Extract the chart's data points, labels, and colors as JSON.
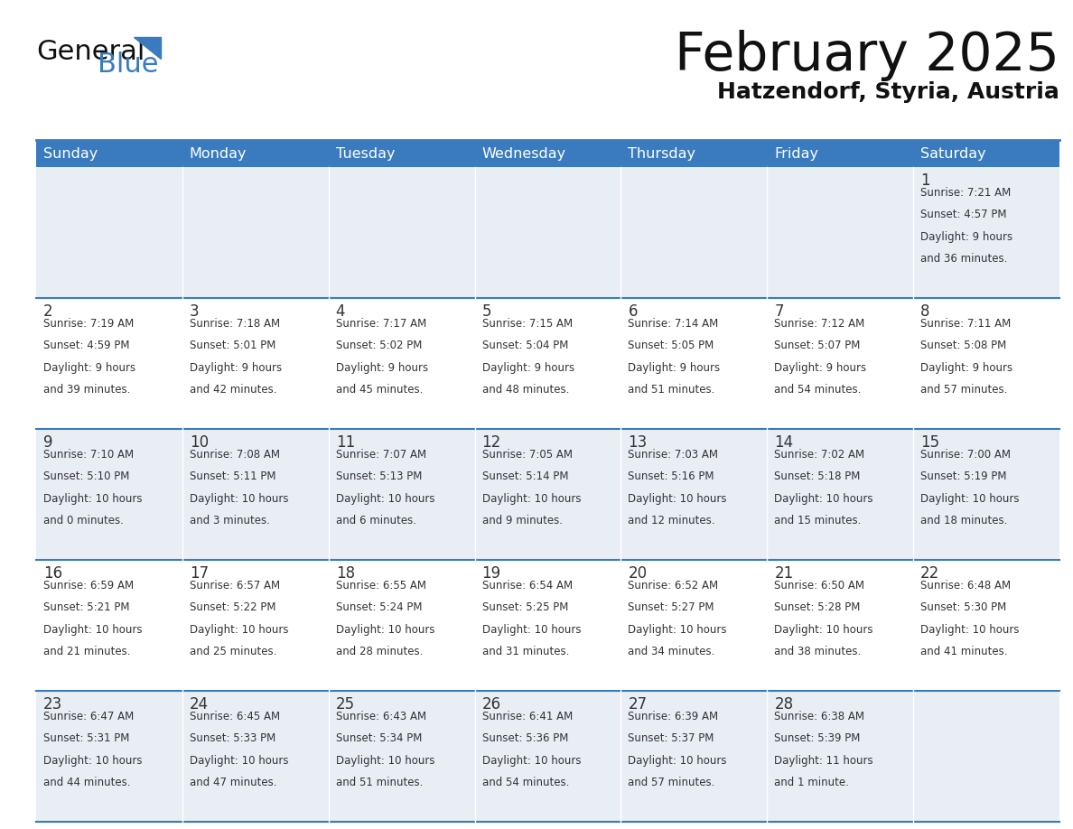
{
  "title": "February 2025",
  "subtitle": "Hatzendorf, Styria, Austria",
  "header_color": "#3a7bbf",
  "header_text_color": "#ffffff",
  "cell_bg_row0": "#e8eef4",
  "cell_bg_row1": "#ffffff",
  "cell_bg_row2": "#e8eef4",
  "cell_bg_row3": "#ffffff",
  "cell_bg_row4": "#e8eef4",
  "border_color": "#3a7bbf",
  "text_color": "#333333",
  "days_of_week": [
    "Sunday",
    "Monday",
    "Tuesday",
    "Wednesday",
    "Thursday",
    "Friday",
    "Saturday"
  ],
  "weeks": [
    [
      null,
      null,
      null,
      null,
      null,
      null,
      1
    ],
    [
      2,
      3,
      4,
      5,
      6,
      7,
      8
    ],
    [
      9,
      10,
      11,
      12,
      13,
      14,
      15
    ],
    [
      16,
      17,
      18,
      19,
      20,
      21,
      22
    ],
    [
      23,
      24,
      25,
      26,
      27,
      28,
      null
    ]
  ],
  "cell_data": {
    "1": {
      "sunrise": "7:21 AM",
      "sunset": "4:57 PM",
      "dl1": "Daylight: 9 hours",
      "dl2": "and 36 minutes."
    },
    "2": {
      "sunrise": "7:19 AM",
      "sunset": "4:59 PM",
      "dl1": "Daylight: 9 hours",
      "dl2": "and 39 minutes."
    },
    "3": {
      "sunrise": "7:18 AM",
      "sunset": "5:01 PM",
      "dl1": "Daylight: 9 hours",
      "dl2": "and 42 minutes."
    },
    "4": {
      "sunrise": "7:17 AM",
      "sunset": "5:02 PM",
      "dl1": "Daylight: 9 hours",
      "dl2": "and 45 minutes."
    },
    "5": {
      "sunrise": "7:15 AM",
      "sunset": "5:04 PM",
      "dl1": "Daylight: 9 hours",
      "dl2": "and 48 minutes."
    },
    "6": {
      "sunrise": "7:14 AM",
      "sunset": "5:05 PM",
      "dl1": "Daylight: 9 hours",
      "dl2": "and 51 minutes."
    },
    "7": {
      "sunrise": "7:12 AM",
      "sunset": "5:07 PM",
      "dl1": "Daylight: 9 hours",
      "dl2": "and 54 minutes."
    },
    "8": {
      "sunrise": "7:11 AM",
      "sunset": "5:08 PM",
      "dl1": "Daylight: 9 hours",
      "dl2": "and 57 minutes."
    },
    "9": {
      "sunrise": "7:10 AM",
      "sunset": "5:10 PM",
      "dl1": "Daylight: 10 hours",
      "dl2": "and 0 minutes."
    },
    "10": {
      "sunrise": "7:08 AM",
      "sunset": "5:11 PM",
      "dl1": "Daylight: 10 hours",
      "dl2": "and 3 minutes."
    },
    "11": {
      "sunrise": "7:07 AM",
      "sunset": "5:13 PM",
      "dl1": "Daylight: 10 hours",
      "dl2": "and 6 minutes."
    },
    "12": {
      "sunrise": "7:05 AM",
      "sunset": "5:14 PM",
      "dl1": "Daylight: 10 hours",
      "dl2": "and 9 minutes."
    },
    "13": {
      "sunrise": "7:03 AM",
      "sunset": "5:16 PM",
      "dl1": "Daylight: 10 hours",
      "dl2": "and 12 minutes."
    },
    "14": {
      "sunrise": "7:02 AM",
      "sunset": "5:18 PM",
      "dl1": "Daylight: 10 hours",
      "dl2": "and 15 minutes."
    },
    "15": {
      "sunrise": "7:00 AM",
      "sunset": "5:19 PM",
      "dl1": "Daylight: 10 hours",
      "dl2": "and 18 minutes."
    },
    "16": {
      "sunrise": "6:59 AM",
      "sunset": "5:21 PM",
      "dl1": "Daylight: 10 hours",
      "dl2": "and 21 minutes."
    },
    "17": {
      "sunrise": "6:57 AM",
      "sunset": "5:22 PM",
      "dl1": "Daylight: 10 hours",
      "dl2": "and 25 minutes."
    },
    "18": {
      "sunrise": "6:55 AM",
      "sunset": "5:24 PM",
      "dl1": "Daylight: 10 hours",
      "dl2": "and 28 minutes."
    },
    "19": {
      "sunrise": "6:54 AM",
      "sunset": "5:25 PM",
      "dl1": "Daylight: 10 hours",
      "dl2": "and 31 minutes."
    },
    "20": {
      "sunrise": "6:52 AM",
      "sunset": "5:27 PM",
      "dl1": "Daylight: 10 hours",
      "dl2": "and 34 minutes."
    },
    "21": {
      "sunrise": "6:50 AM",
      "sunset": "5:28 PM",
      "dl1": "Daylight: 10 hours",
      "dl2": "and 38 minutes."
    },
    "22": {
      "sunrise": "6:48 AM",
      "sunset": "5:30 PM",
      "dl1": "Daylight: 10 hours",
      "dl2": "and 41 minutes."
    },
    "23": {
      "sunrise": "6:47 AM",
      "sunset": "5:31 PM",
      "dl1": "Daylight: 10 hours",
      "dl2": "and 44 minutes."
    },
    "24": {
      "sunrise": "6:45 AM",
      "sunset": "5:33 PM",
      "dl1": "Daylight: 10 hours",
      "dl2": "and 47 minutes."
    },
    "25": {
      "sunrise": "6:43 AM",
      "sunset": "5:34 PM",
      "dl1": "Daylight: 10 hours",
      "dl2": "and 51 minutes."
    },
    "26": {
      "sunrise": "6:41 AM",
      "sunset": "5:36 PM",
      "dl1": "Daylight: 10 hours",
      "dl2": "and 54 minutes."
    },
    "27": {
      "sunrise": "6:39 AM",
      "sunset": "5:37 PM",
      "dl1": "Daylight: 10 hours",
      "dl2": "and 57 minutes."
    },
    "28": {
      "sunrise": "6:38 AM",
      "sunset": "5:39 PM",
      "dl1": "Daylight: 11 hours",
      "dl2": "and 1 minute."
    }
  },
  "logo_text_general": "General",
  "logo_text_blue": "Blue",
  "logo_blue_color": "#3a7bbf",
  "fig_width": 11.88,
  "fig_height": 9.18,
  "dpi": 100
}
